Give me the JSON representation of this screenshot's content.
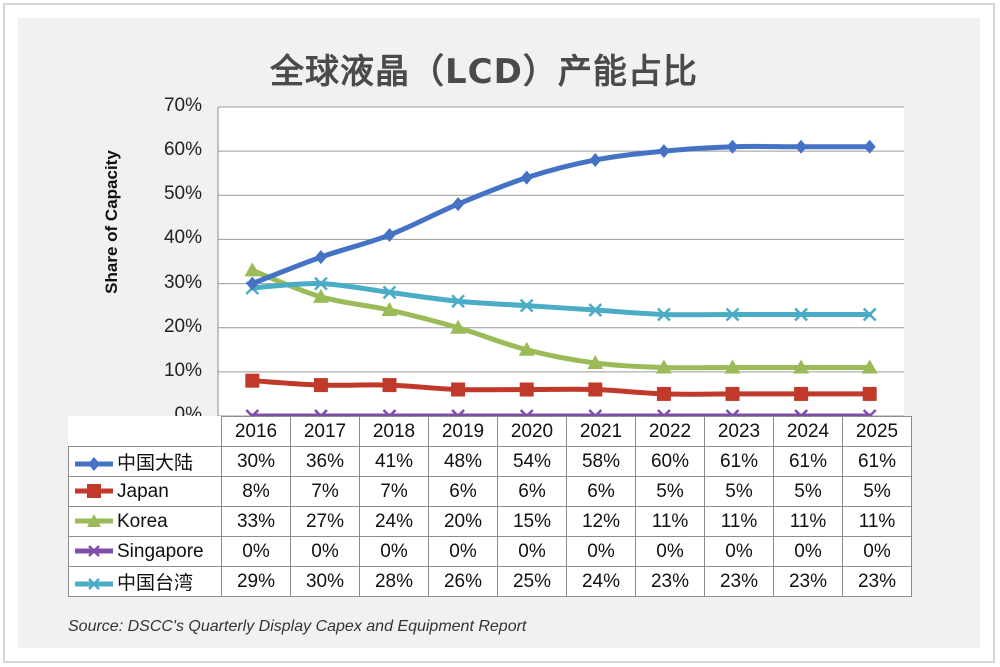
{
  "title": "全球液晶（LCD）产能占比",
  "source": "Source: DSCC's Quarterly Display Capex and Equipment Report",
  "chart_data": {
    "type": "line",
    "title": "全球液晶（LCD）产能占比",
    "ylabel": "Share of Capacity",
    "xlabel": "",
    "ylim": [
      0,
      70
    ],
    "yticks": [
      "70%",
      "60%",
      "50%",
      "40%",
      "30%",
      "20%",
      "10%",
      "0%"
    ],
    "grid": true,
    "legend": "data-table",
    "x": [
      "2016",
      "2017",
      "2018",
      "2019",
      "2020",
      "2021",
      "2022",
      "2023",
      "2024",
      "2025"
    ],
    "series": [
      {
        "name": "中国大陆",
        "color": "#4472c4",
        "marker": "diamond",
        "values": [
          30,
          36,
          41,
          48,
          54,
          58,
          60,
          61,
          61,
          61
        ],
        "labels": [
          "30%",
          "36%",
          "41%",
          "48%",
          "54%",
          "58%",
          "60%",
          "61%",
          "61%",
          "61%"
        ]
      },
      {
        "name": "Japan",
        "color": "#c0392b",
        "marker": "square",
        "values": [
          8,
          7,
          7,
          6,
          6,
          6,
          5,
          5,
          5,
          5
        ],
        "labels": [
          "8%",
          "7%",
          "7%",
          "6%",
          "6%",
          "6%",
          "5%",
          "5%",
          "5%",
          "5%"
        ]
      },
      {
        "name": "Korea",
        "color": "#9bbb59",
        "marker": "triangle",
        "values": [
          33,
          27,
          24,
          20,
          15,
          12,
          11,
          11,
          11,
          11
        ],
        "labels": [
          "33%",
          "27%",
          "24%",
          "20%",
          "15%",
          "12%",
          "11%",
          "11%",
          "11%",
          "11%"
        ]
      },
      {
        "name": "Singapore",
        "color": "#7f4fa8",
        "marker": "x",
        "values": [
          0,
          0,
          0,
          0,
          0,
          0,
          0,
          0,
          0,
          0
        ],
        "labels": [
          "0%",
          "0%",
          "0%",
          "0%",
          "0%",
          "0%",
          "0%",
          "0%",
          "0%",
          "0%"
        ]
      },
      {
        "name": "中国台湾",
        "color": "#4bacc6",
        "marker": "x",
        "values": [
          29,
          30,
          28,
          26,
          25,
          24,
          23,
          23,
          23,
          23
        ],
        "labels": [
          "29%",
          "30%",
          "28%",
          "26%",
          "25%",
          "24%",
          "23%",
          "23%",
          "23%",
          "23%"
        ]
      }
    ]
  }
}
